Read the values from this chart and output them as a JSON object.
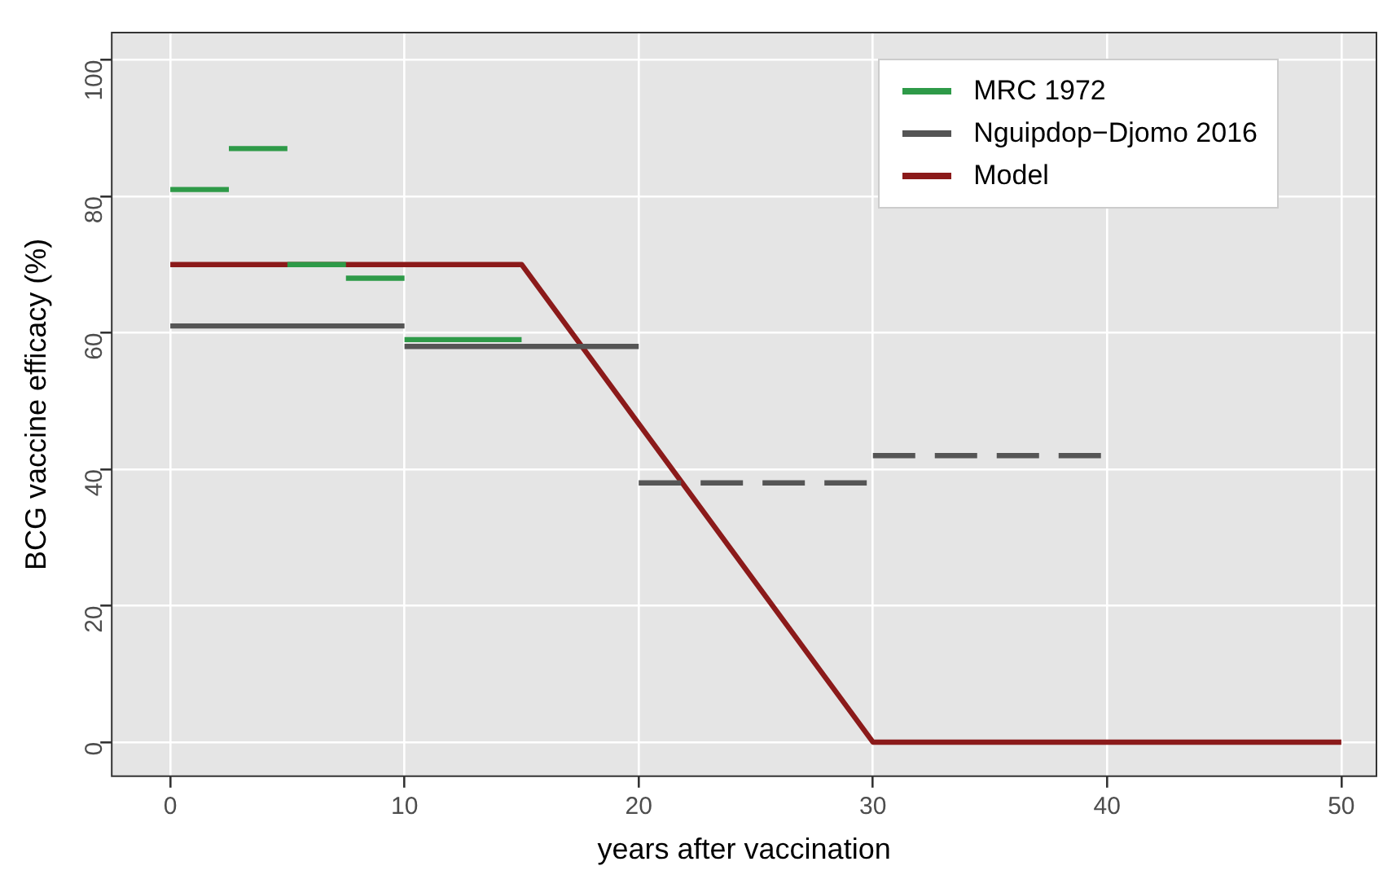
{
  "chart_data": {
    "type": "line",
    "xlabel": "years after vaccination",
    "ylabel": "BCG vaccine efficacy (%)",
    "xlim": [
      -2.5,
      51.5
    ],
    "xticks": [
      0,
      10,
      20,
      30,
      40,
      50
    ],
    "ylim": [
      -5,
      104
    ],
    "yticks": [
      0,
      20,
      40,
      60,
      80,
      100
    ],
    "grid": true,
    "legend": "top right",
    "marker": "none",
    "series": [
      {
        "name": "MRC 1972",
        "color": "#2e9a48",
        "line_style": "solid",
        "x": [
          0,
          2.5,
          null,
          2.5,
          5,
          null,
          5,
          7.5,
          null,
          7.5,
          10,
          null,
          10,
          15
        ],
        "values": [
          81,
          81,
          null,
          87,
          87,
          null,
          70,
          70,
          null,
          68,
          68,
          null,
          59,
          59
        ]
      },
      {
        "name": "Nguipdop−Djomo 2016",
        "color": "#555555",
        "line_style": "solid",
        "x": [
          0,
          10,
          null,
          10,
          20
        ],
        "values": [
          61,
          61,
          null,
          58,
          58
        ]
      },
      {
        "color": "#555555",
        "line_style": "dashed",
        "x": [
          20,
          30,
          null,
          30,
          40
        ],
        "values": [
          38,
          38,
          null,
          42,
          42
        ]
      },
      {
        "name": "Model",
        "color": "#8b1a1a",
        "line_style": "solid",
        "x": [
          0,
          15,
          30,
          50
        ],
        "values": [
          70,
          70,
          0,
          0
        ]
      }
    ]
  }
}
